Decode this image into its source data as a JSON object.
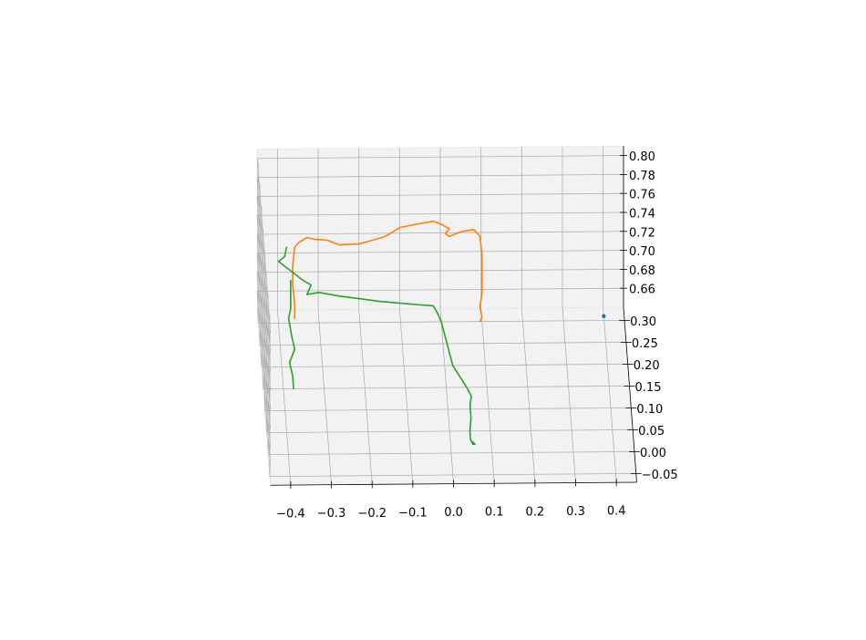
{
  "chart_data": {
    "type": "line",
    "projection": "3d",
    "title": "",
    "xlabel": "",
    "ylabel": "",
    "zlabel": "",
    "grid": true,
    "pane_color": "#f2f2f2",
    "grid_color": "#b0b0b0",
    "x_ticks": [
      "−0.4",
      "−0.3",
      "−0.2",
      "−0.1",
      "0.0",
      "0.1",
      "0.2",
      "0.3",
      "0.4"
    ],
    "y_ticks": [
      "−0.05",
      "0.00",
      "0.05",
      "0.10",
      "0.15",
      "0.20",
      "0.25",
      "0.30"
    ],
    "z_ticks": [
      "0.66",
      "0.68",
      "0.70",
      "0.72",
      "0.74",
      "0.76",
      "0.78",
      "0.80"
    ],
    "xlim": [
      -0.45,
      0.45
    ],
    "ylim": [
      -0.07,
      0.33
    ],
    "zlim": [
      0.64,
      0.81
    ],
    "series": [
      {
        "color": "#1f77b4",
        "kind": "point",
        "points": [
          [
            0.4,
            0.31,
            0.64
          ]
        ]
      },
      {
        "color": "#ff7f0e",
        "kind": "line",
        "points": [
          [
            -0.36,
            0.3,
            0.645
          ],
          [
            -0.36,
            0.3,
            0.66
          ],
          [
            -0.365,
            0.3,
            0.68
          ],
          [
            -0.365,
            0.3,
            0.7
          ],
          [
            -0.36,
            0.3,
            0.72
          ],
          [
            -0.35,
            0.3,
            0.725
          ],
          [
            -0.33,
            0.3,
            0.73
          ],
          [
            -0.31,
            0.3,
            0.728
          ],
          [
            -0.28,
            0.3,
            0.727
          ],
          [
            -0.25,
            0.3,
            0.722
          ],
          [
            -0.2,
            0.3,
            0.723
          ],
          [
            -0.14,
            0.3,
            0.73
          ],
          [
            -0.1,
            0.3,
            0.74
          ],
          [
            -0.05,
            0.3,
            0.744
          ],
          [
            -0.02,
            0.3,
            0.746
          ],
          [
            0.0,
            0.3,
            0.743
          ],
          [
            0.02,
            0.3,
            0.738
          ],
          [
            0.01,
            0.3,
            0.733
          ],
          [
            0.02,
            0.3,
            0.73
          ],
          [
            0.05,
            0.3,
            0.735
          ],
          [
            0.08,
            0.3,
            0.737
          ],
          [
            0.095,
            0.3,
            0.73
          ],
          [
            0.1,
            0.3,
            0.71
          ],
          [
            0.1,
            0.3,
            0.69
          ],
          [
            0.1,
            0.3,
            0.67
          ],
          [
            0.095,
            0.3,
            0.655
          ],
          [
            0.1,
            0.3,
            0.645
          ],
          [
            0.095,
            0.3,
            0.64
          ]
        ]
      },
      {
        "color": "#2ca02c",
        "kind": "line",
        "points": [
          [
            -0.38,
            0.3,
            0.72
          ],
          [
            -0.385,
            0.3,
            0.71
          ],
          [
            -0.4,
            0.3,
            0.705
          ],
          [
            -0.385,
            0.3,
            0.7
          ],
          [
            -0.37,
            0.3,
            0.695
          ],
          [
            -0.34,
            0.3,
            0.685
          ],
          [
            -0.32,
            0.3,
            0.68
          ],
          [
            -0.33,
            0.3,
            0.67
          ],
          [
            -0.3,
            0.3,
            0.672
          ],
          [
            -0.25,
            0.3,
            0.668
          ],
          [
            -0.2,
            0.3,
            0.665
          ],
          [
            -0.15,
            0.3,
            0.662
          ],
          [
            -0.1,
            0.3,
            0.66
          ],
          [
            -0.05,
            0.3,
            0.658
          ],
          [
            -0.02,
            0.3,
            0.657
          ],
          [
            -0.01,
            0.3,
            0.65
          ],
          [
            0.0,
            0.3,
            0.64
          ],
          [
            0.02,
            0.2,
            0.64
          ],
          [
            0.05,
            0.15,
            0.64
          ],
          [
            0.06,
            0.13,
            0.64
          ],
          [
            0.055,
            0.11,
            0.64
          ],
          [
            0.055,
            0.08,
            0.64
          ],
          [
            0.05,
            0.05,
            0.64
          ],
          [
            0.05,
            0.03,
            0.64
          ],
          [
            0.055,
            0.02,
            0.64
          ],
          [
            0.06,
            0.02,
            0.64
          ],
          [
            0.055,
            0.025,
            0.64
          ]
        ]
      },
      {
        "color": "#2ca02c",
        "kind": "line",
        "points": [
          [
            -0.37,
            0.3,
            0.685
          ],
          [
            -0.37,
            0.3,
            0.67
          ],
          [
            -0.37,
            0.3,
            0.655
          ],
          [
            -0.375,
            0.3,
            0.645
          ],
          [
            -0.37,
            0.27,
            0.64
          ],
          [
            -0.365,
            0.24,
            0.64
          ],
          [
            -0.38,
            0.21,
            0.64
          ],
          [
            -0.375,
            0.18,
            0.64
          ],
          [
            -0.375,
            0.15,
            0.64
          ]
        ]
      }
    ]
  }
}
